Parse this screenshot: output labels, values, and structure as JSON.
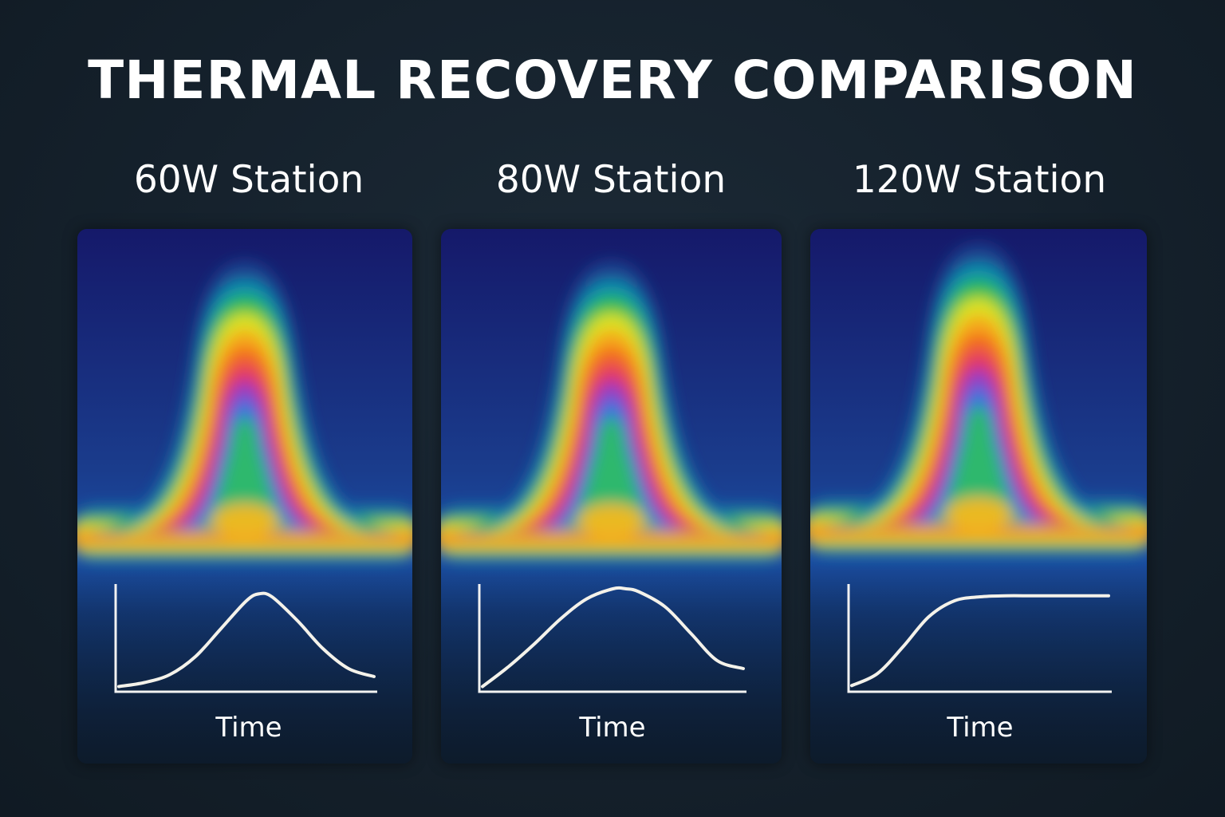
{
  "title": "THERMAL RECOVERY COMPARISON",
  "chart_data": [
    {
      "type": "line",
      "title": "60W Station",
      "xlabel": "Time",
      "ylabel": "",
      "profile": "peak_then_decay",
      "x": [
        0,
        0.1,
        0.2,
        0.3,
        0.4,
        0.5,
        0.55,
        0.6,
        0.7,
        0.8,
        0.9,
        1.0
      ],
      "y": [
        0.02,
        0.06,
        0.14,
        0.32,
        0.6,
        0.88,
        0.95,
        0.92,
        0.68,
        0.4,
        0.2,
        0.12
      ]
    },
    {
      "type": "line",
      "title": "80W Station",
      "xlabel": "Time",
      "ylabel": "",
      "profile": "broad_peak_then_decay",
      "x": [
        0,
        0.1,
        0.2,
        0.3,
        0.4,
        0.5,
        0.55,
        0.6,
        0.7,
        0.8,
        0.9,
        1.0
      ],
      "y": [
        0.02,
        0.22,
        0.45,
        0.7,
        0.9,
        1.0,
        1.0,
        0.97,
        0.82,
        0.55,
        0.28,
        0.2
      ]
    },
    {
      "type": "line",
      "title": "120W Station",
      "xlabel": "Time",
      "ylabel": "",
      "profile": "fast_rise_then_plateau",
      "x": [
        0,
        0.1,
        0.2,
        0.3,
        0.4,
        0.5,
        0.6,
        0.7,
        0.8,
        0.9,
        1.0
      ],
      "y": [
        0.03,
        0.15,
        0.42,
        0.72,
        0.88,
        0.92,
        0.93,
        0.93,
        0.93,
        0.93,
        0.93
      ]
    }
  ]
}
